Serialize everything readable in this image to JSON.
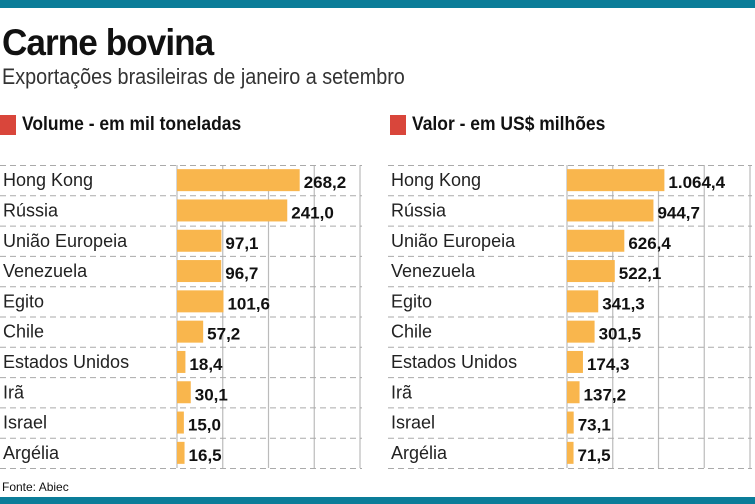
{
  "header": {
    "title": "Carne bovina",
    "subtitle": "Exportações brasileiras de janeiro a setembro"
  },
  "colors": {
    "bar": "#f9b64d",
    "accent": "#d9463b",
    "brand": "#0b7d99"
  },
  "chart_data": [
    {
      "type": "bar",
      "orientation": "horizontal",
      "title": "Volume - em mil toneladas",
      "categories": [
        "Hong Kong",
        "Rússia",
        "União Europeia",
        "Venezuela",
        "Egito",
        "Chile",
        "Estados Unidos",
        "Irã",
        "Israel",
        "Argélia"
      ],
      "values": [
        268.2,
        241.0,
        97.1,
        96.7,
        101.6,
        57.2,
        18.4,
        30.1,
        15.0,
        16.5
      ],
      "labels": [
        "268,2",
        "241,0",
        "97,1",
        "96,7",
        "101,6",
        "57,2",
        "18,4",
        "30,1",
        "15,0",
        "16,5"
      ],
      "xlim": [
        0,
        400
      ],
      "grid_step": 100,
      "grid": true
    },
    {
      "type": "bar",
      "orientation": "horizontal",
      "title": "Valor - em US$ milhões",
      "categories": [
        "Hong Kong",
        "Rússia",
        "União Europeia",
        "Venezuela",
        "Egito",
        "Chile",
        "Estados Unidos",
        "Irã",
        "Israel",
        "Argélia"
      ],
      "values": [
        1064.4,
        944.7,
        626.4,
        522.1,
        341.3,
        301.5,
        174.3,
        137.2,
        73.1,
        71.5
      ],
      "labels": [
        "1.064,4",
        "944,7",
        "626,4",
        "522,1",
        "341,3",
        "301,5",
        "174,3",
        "137,2",
        "73,1",
        "71,5"
      ],
      "xlim": [
        0,
        2000
      ],
      "grid_step": 500,
      "grid": true
    }
  ],
  "footer": {
    "source": "Fonte: Abiec"
  }
}
